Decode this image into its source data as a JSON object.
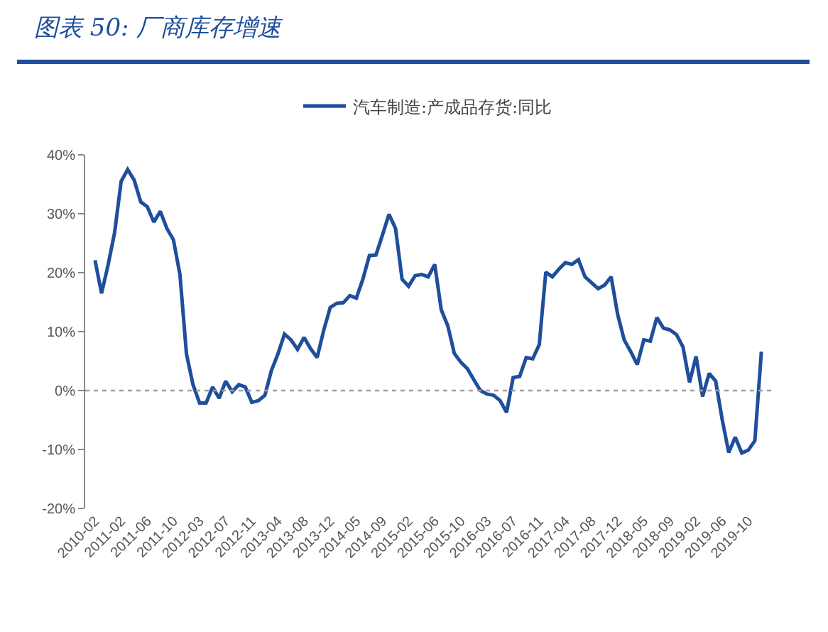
{
  "chart_data": {
    "type": "line",
    "title": "图表 50:  厂商库存增速",
    "categories": [
      "2010-02",
      null,
      null,
      null,
      "2011-02",
      null,
      null,
      null,
      "2011-06",
      null,
      null,
      null,
      "2011-10",
      null,
      null,
      null,
      "2012-03",
      null,
      null,
      null,
      "2012-07",
      null,
      null,
      null,
      "2012-11",
      null,
      null,
      null,
      "2013-04",
      null,
      null,
      null,
      "2013-08",
      null,
      null,
      null,
      "2013-12",
      null,
      null,
      null,
      "2014-05",
      null,
      null,
      null,
      "2014-09",
      null,
      null,
      null,
      "2015-02",
      null,
      null,
      null,
      "2015-06",
      null,
      null,
      null,
      "2015-10",
      null,
      null,
      null,
      "2016-03",
      null,
      null,
      null,
      "2016-07",
      null,
      null,
      null,
      "2016-11",
      null,
      null,
      null,
      "2017-04",
      null,
      null,
      null,
      "2017-08",
      null,
      null,
      null,
      "2017-12",
      null,
      null,
      null,
      "2018-05",
      null,
      null,
      null,
      "2018-09",
      null,
      null,
      null,
      "2019-02",
      null,
      null,
      null,
      "2019-06",
      null,
      null,
      null,
      "2019-10",
      null,
      null
    ],
    "series": [
      {
        "name": "汽车制造:产成品存货:同比",
        "color": "#1f4e9c",
        "values": [
          22.1,
          16.5,
          21.3,
          26.8,
          35.5,
          37.5,
          35.7,
          32,
          31.2,
          28.6,
          30.4,
          27.5,
          25.6,
          19.7,
          6.2,
          1,
          -2.1,
          -2.1,
          0.6,
          -1.3,
          1.6,
          -0.2,
          1,
          0.6,
          -2,
          -1.7,
          -0.8,
          3.4,
          6.2,
          9.6,
          8.6,
          7,
          9,
          7.1,
          5.6,
          10.2,
          14.1,
          14.8,
          14.9,
          16.1,
          15.7,
          18.9,
          22.9,
          23,
          26.4,
          29.9,
          27.5,
          18.9,
          17.7,
          19.5,
          19.7,
          19.3,
          21.4,
          13.7,
          11,
          6.3,
          4.8,
          3.7,
          1.8,
          0,
          -0.6,
          -0.8,
          -1.7,
          -3.7,
          2.2,
          2.4,
          5.6,
          5.4,
          7.8,
          20.1,
          19.3,
          20.6,
          21.7,
          21.4,
          22.2,
          19.3,
          18.3,
          17.3,
          17.9,
          19.3,
          12.9,
          8.6,
          6.6,
          4.4,
          8.6,
          8.4,
          12.4,
          10.6,
          10.3,
          9.5,
          7.4,
          1.4,
          5.8,
          -1,
          2.9,
          1.6,
          -4.9,
          -10.5,
          -7.9,
          -10.6,
          -10.1,
          -8.5,
          6.6
        ]
      }
    ],
    "ylim": [
      -20,
      40
    ],
    "yticks": [
      {
        "value": -20,
        "label": "-20%"
      },
      {
        "value": -10,
        "label": "-10%"
      },
      {
        "value": 0,
        "label": "0%"
      },
      {
        "value": 10,
        "label": "10%"
      },
      {
        "value": 20,
        "label": "20%"
      },
      {
        "value": 30,
        "label": "30%"
      },
      {
        "value": 40,
        "label": "40%"
      }
    ],
    "ref_lines": [
      {
        "axis": "y",
        "value": 0,
        "color": "#a0a0a0",
        "line_style": "dotted"
      }
    ],
    "grid": false,
    "legend": "top"
  }
}
